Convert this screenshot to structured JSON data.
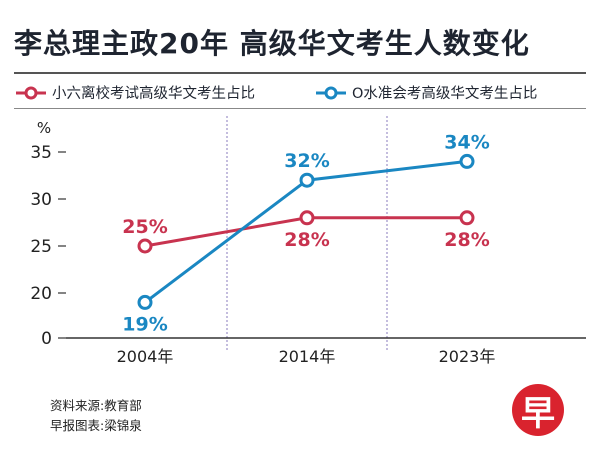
{
  "title": "李总理主政20年  高级华文考生人数变化",
  "colors": {
    "series1": "#c8334f",
    "series2": "#1a87c2",
    "divider": "#8a7bbd",
    "axis": "#333333"
  },
  "chart_data": {
    "type": "line",
    "categories": [
      "2004年",
      "2014年",
      "2023年"
    ],
    "yunit": "%",
    "ylim": [
      0,
      35
    ],
    "yticks": [
      0,
      20,
      25,
      30,
      35
    ],
    "y_axis_break": [
      0,
      20
    ],
    "grid": false,
    "legend_position": "top",
    "series": [
      {
        "name": "小六离校考试高级华文考生占比",
        "values": [
          25,
          28,
          28
        ],
        "labels": [
          "25%",
          "28%",
          "28%"
        ],
        "label_pos": [
          "above",
          "below",
          "below"
        ]
      },
      {
        "name": "O水准会考高级华文考生占比",
        "values": [
          19,
          32,
          34
        ],
        "labels": [
          "19%",
          "32%",
          "34%"
        ],
        "label_pos": [
          "below",
          "above",
          "above"
        ]
      }
    ]
  },
  "source": [
    "资料来源:教育部",
    "早报图表:梁锦泉"
  ],
  "logo_text": "早"
}
